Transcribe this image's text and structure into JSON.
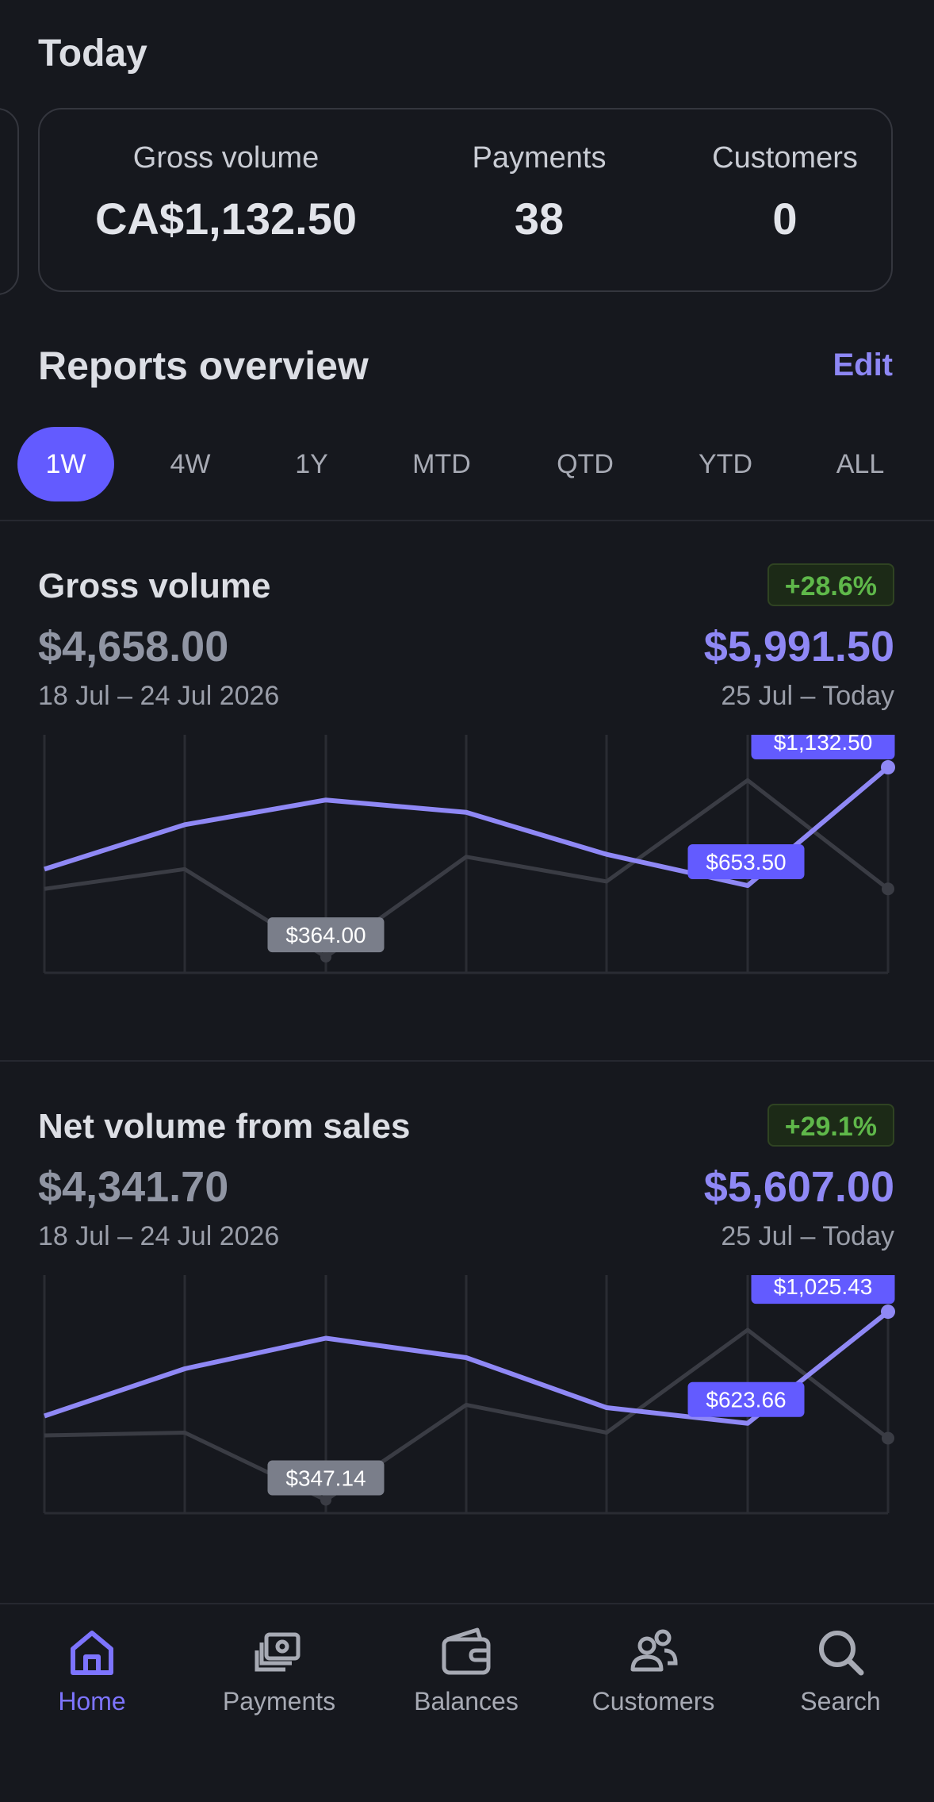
{
  "today": {
    "title": "Today",
    "metrics": [
      {
        "label": "Gross volume",
        "value": "CA$1,132.50"
      },
      {
        "label": "Payments",
        "value": "38"
      },
      {
        "label": "Customers",
        "value": "0"
      }
    ]
  },
  "reports": {
    "title": "Reports overview",
    "edit_label": "Edit",
    "tabs": [
      "1W",
      "4W",
      "1Y",
      "MTD",
      "QTD",
      "YTD",
      "ALL"
    ],
    "active_tab": "1W"
  },
  "sections": [
    {
      "title": "Gross volume",
      "badge": "+28.6%",
      "previous_value": "$4,658.00",
      "previous_range": "18 Jul – 24 Jul 2026",
      "current_value": "$5,991.50",
      "current_range": "25 Jul – Today",
      "labels": {
        "peak": "$1,132.50",
        "dip": "$653.50",
        "prev_low": "$364.00"
      }
    },
    {
      "title": "Net volume from sales",
      "badge": "+29.1%",
      "previous_value": "$4,341.70",
      "previous_range": "18 Jul – 24 Jul 2026",
      "current_value": "$5,607.00",
      "current_range": "25 Jul – Today",
      "labels": {
        "peak": "$1,025.43",
        "dip": "$623.66",
        "prev_low": "$347.14"
      }
    }
  ],
  "chart_data": [
    {
      "type": "line",
      "title": "Gross volume",
      "x": [
        1,
        2,
        3,
        4,
        5,
        6,
        7
      ],
      "series": [
        {
          "values": [
            720,
            900,
            1000,
            950,
            780,
            653.5,
            1132.5
          ],
          "color": "#8f88f5"
        },
        {
          "values": [
            640,
            720,
            364,
            770,
            670,
            1080,
            640
          ],
          "color": "#3a3c44"
        }
      ],
      "ylim": [
        300,
        1200
      ],
      "grid": true
    },
    {
      "type": "line",
      "title": "Net volume from sales",
      "x": [
        1,
        2,
        3,
        4,
        5,
        6,
        7
      ],
      "series": [
        {
          "values": [
            650,
            820,
            930,
            860,
            680,
            623.66,
            1025.43
          ],
          "color": "#8f88f5"
        },
        {
          "values": [
            580,
            590,
            347.14,
            690,
            590,
            960,
            570
          ],
          "color": "#3a3c44"
        }
      ],
      "ylim": [
        300,
        1100
      ],
      "grid": true
    }
  ],
  "nav": {
    "items": [
      {
        "label": "Home",
        "icon": "home-icon"
      },
      {
        "label": "Payments",
        "icon": "payments-icon"
      },
      {
        "label": "Balances",
        "icon": "wallet-icon"
      },
      {
        "label": "Customers",
        "icon": "customers-icon"
      },
      {
        "label": "Search",
        "icon": "search-icon"
      }
    ],
    "active": "Home"
  },
  "colors": {
    "accent": "#635bff",
    "positive": "#5fb84a",
    "series_current": "#8f88f5"
  }
}
